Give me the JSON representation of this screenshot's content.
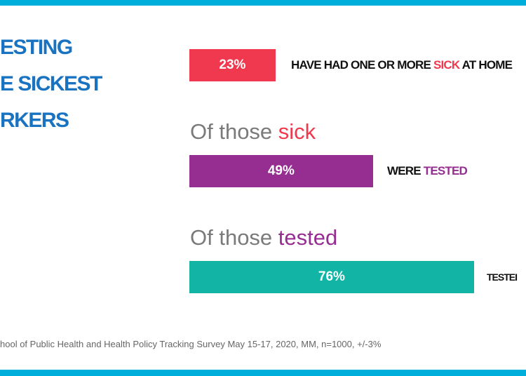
{
  "title_lines": [
    "ESTING",
    "E SICKEST",
    "RKERS"
  ],
  "colors": {
    "band": "#00aedb",
    "title": "#1a73c0",
    "red": "#f0394f",
    "purple": "#962d91",
    "teal": "#12b5a5"
  },
  "subtitles": [
    {
      "pre": "Of those ",
      "emph": "sick"
    },
    {
      "pre": "Of those ",
      "emph": "tested"
    }
  ],
  "bars": [
    {
      "value_label": "23%",
      "label_pre": "HAVE HAD ONE OR MORE ",
      "label_emph": "SICK",
      "label_post": " AT HOME"
    },
    {
      "value_label": "49%",
      "label_pre": "WERE ",
      "label_emph": "TESTED",
      "label_post": ""
    },
    {
      "value_label": "76%",
      "label_pre": "TESTEI",
      "label_emph": "",
      "label_post": ""
    }
  ],
  "source": "hool of Public Health and Health Policy Tracking Survey May 15-17, 2020, MM, n=1000, +/-3%",
  "chart_data": {
    "type": "bar",
    "orientation": "horizontal",
    "categories": [
      "Have had one or more sick at home",
      "Of those sick: were tested",
      "Of those tested: tested (truncated)"
    ],
    "values": [
      23,
      49,
      76
    ],
    "unit": "%",
    "xlim": [
      0,
      100
    ],
    "grid": false
  }
}
